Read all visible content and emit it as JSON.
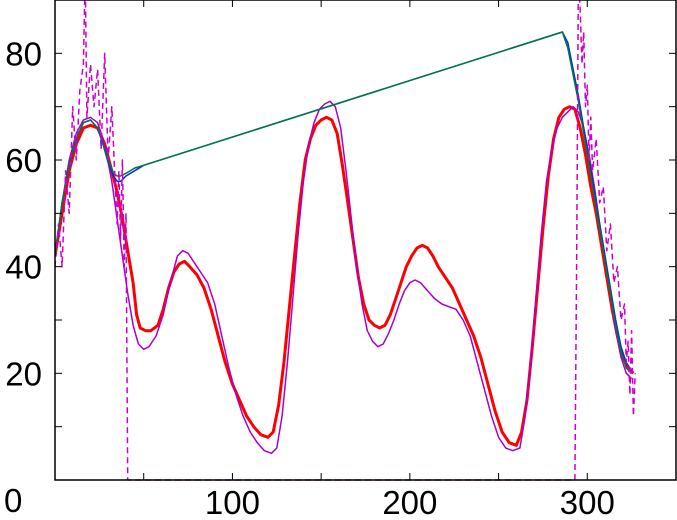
{
  "chart_data": {
    "type": "line",
    "title": "",
    "xlabel": "",
    "ylabel": "",
    "xlim": [
      0,
      350
    ],
    "ylim": [
      0,
      90
    ],
    "grid": false,
    "legend": "none",
    "x_ticks": [
      100,
      200,
      300
    ],
    "x_tick_labels": [
      "100",
      "200",
      "300"
    ],
    "y_ticks": [
      20,
      40,
      60,
      80
    ],
    "y_tick_labels": [
      "20",
      "40",
      "60",
      "80"
    ],
    "origin_label": "0",
    "series": [
      {
        "color": "#ff0000",
        "style": "solid",
        "width": "thick",
        "points": [
          [
            0,
            42
          ],
          [
            4,
            50
          ],
          [
            8,
            58
          ],
          [
            12,
            63
          ],
          [
            16,
            66
          ],
          [
            20,
            66.5
          ],
          [
            24,
            66
          ],
          [
            28,
            63
          ],
          [
            32,
            58
          ],
          [
            35,
            54
          ],
          [
            38,
            49
          ],
          [
            41,
            43
          ],
          [
            44,
            37
          ],
          [
            46,
            31
          ],
          [
            48,
            28.5
          ],
          [
            51,
            28
          ],
          [
            54,
            28
          ],
          [
            58,
            29
          ],
          [
            61,
            32
          ],
          [
            64,
            36
          ],
          [
            67,
            39
          ],
          [
            70,
            40.5
          ],
          [
            73,
            41
          ],
          [
            76,
            40
          ],
          [
            80,
            38.5
          ],
          [
            84,
            36
          ],
          [
            88,
            32
          ],
          [
            92,
            27
          ],
          [
            96,
            22
          ],
          [
            100,
            18
          ],
          [
            104,
            15
          ],
          [
            108,
            12
          ],
          [
            112,
            10
          ],
          [
            116,
            8.5
          ],
          [
            120,
            8
          ],
          [
            123,
            9
          ],
          [
            126,
            14
          ],
          [
            129,
            22
          ],
          [
            132,
            32
          ],
          [
            135,
            42
          ],
          [
            138,
            52
          ],
          [
            141,
            60
          ],
          [
            144,
            64
          ],
          [
            147,
            66.5
          ],
          [
            150,
            67.5
          ],
          [
            153,
            68
          ],
          [
            156,
            67.5
          ],
          [
            159,
            65
          ],
          [
            162,
            59
          ],
          [
            165,
            52
          ],
          [
            168,
            45
          ],
          [
            171,
            38
          ],
          [
            174,
            33
          ],
          [
            177,
            30
          ],
          [
            180,
            29
          ],
          [
            183,
            28.5
          ],
          [
            186,
            29
          ],
          [
            189,
            31
          ],
          [
            192,
            34
          ],
          [
            195,
            37
          ],
          [
            198,
            40
          ],
          [
            201,
            42
          ],
          [
            204,
            43.5
          ],
          [
            207,
            44
          ],
          [
            210,
            43.5
          ],
          [
            213,
            42
          ],
          [
            216,
            40
          ],
          [
            220,
            38
          ],
          [
            224,
            36
          ],
          [
            228,
            33
          ],
          [
            232,
            30
          ],
          [
            236,
            27
          ],
          [
            240,
            23
          ],
          [
            244,
            18
          ],
          [
            248,
            13
          ],
          [
            252,
            9
          ],
          [
            256,
            7
          ],
          [
            260,
            6.5
          ],
          [
            263,
            9
          ],
          [
            266,
            15
          ],
          [
            269,
            25
          ],
          [
            272,
            36
          ],
          [
            275,
            47
          ],
          [
            278,
            57
          ],
          [
            281,
            64
          ],
          [
            284,
            68
          ],
          [
            287,
            69.5
          ],
          [
            290,
            70
          ],
          [
            293,
            69.5
          ],
          [
            296,
            66
          ],
          [
            299,
            61
          ],
          [
            302,
            55
          ],
          [
            305,
            50
          ],
          [
            308,
            44
          ],
          [
            311,
            38
          ],
          [
            314,
            32
          ],
          [
            317,
            27
          ],
          [
            320,
            23
          ],
          [
            323,
            21
          ],
          [
            326,
            20
          ]
        ]
      },
      {
        "color": "#aa00cc",
        "style": "solid",
        "width": "thin",
        "points": [
          [
            0,
            42
          ],
          [
            4,
            52
          ],
          [
            8,
            60
          ],
          [
            12,
            65
          ],
          [
            16,
            67.5
          ],
          [
            20,
            68
          ],
          [
            24,
            67
          ],
          [
            28,
            63
          ],
          [
            32,
            56
          ],
          [
            35,
            49
          ],
          [
            38,
            42
          ],
          [
            41,
            35
          ],
          [
            44,
            29
          ],
          [
            47,
            25.5
          ],
          [
            50,
            24.5
          ],
          [
            53,
            25
          ],
          [
            57,
            27
          ],
          [
            61,
            31
          ],
          [
            65,
            37
          ],
          [
            69,
            42
          ],
          [
            72,
            43
          ],
          [
            75,
            42.5
          ],
          [
            78,
            41
          ],
          [
            82,
            39
          ],
          [
            86,
            37
          ],
          [
            90,
            33
          ],
          [
            94,
            27
          ],
          [
            98,
            21
          ],
          [
            102,
            16
          ],
          [
            106,
            12
          ],
          [
            110,
            9
          ],
          [
            114,
            7
          ],
          [
            118,
            5.5
          ],
          [
            122,
            5
          ],
          [
            125,
            6
          ],
          [
            128,
            12
          ],
          [
            131,
            22
          ],
          [
            134,
            34
          ],
          [
            137,
            46
          ],
          [
            140,
            56
          ],
          [
            143,
            63
          ],
          [
            146,
            67
          ],
          [
            149,
            69.5
          ],
          [
            152,
            70.5
          ],
          [
            155,
            71
          ],
          [
            158,
            70
          ],
          [
            161,
            66
          ],
          [
            164,
            58
          ],
          [
            167,
            49
          ],
          [
            170,
            40
          ],
          [
            173,
            33
          ],
          [
            176,
            28
          ],
          [
            179,
            26
          ],
          [
            182,
            25
          ],
          [
            185,
            25.5
          ],
          [
            188,
            27.5
          ],
          [
            191,
            30
          ],
          [
            194,
            33
          ],
          [
            197,
            35.5
          ],
          [
            200,
            37
          ],
          [
            203,
            37.5
          ],
          [
            206,
            37
          ],
          [
            210,
            35.5
          ],
          [
            214,
            34
          ],
          [
            218,
            33
          ],
          [
            222,
            32.5
          ],
          [
            226,
            32
          ],
          [
            230,
            30
          ],
          [
            234,
            27
          ],
          [
            238,
            22
          ],
          [
            242,
            17
          ],
          [
            246,
            12
          ],
          [
            250,
            8
          ],
          [
            254,
            6
          ],
          [
            258,
            5.5
          ],
          [
            262,
            6
          ],
          [
            265,
            12
          ],
          [
            268,
            22
          ],
          [
            271,
            34
          ],
          [
            274,
            46
          ],
          [
            277,
            56
          ],
          [
            280,
            62
          ],
          [
            283,
            66
          ],
          [
            286,
            68
          ],
          [
            289,
            69
          ],
          [
            292,
            70
          ],
          [
            295,
            69
          ],
          [
            298,
            66
          ],
          [
            301,
            61
          ],
          [
            304,
            55
          ],
          [
            307,
            48
          ],
          [
            310,
            42
          ],
          [
            313,
            35
          ],
          [
            316,
            28
          ],
          [
            319,
            23
          ],
          [
            322,
            20
          ],
          [
            325,
            19
          ]
        ]
      },
      {
        "color": "#0033cc",
        "style": "solid",
        "width": "thin",
        "points": [
          [
            0,
            42
          ],
          [
            4,
            52
          ],
          [
            8,
            59
          ],
          [
            12,
            64
          ],
          [
            16,
            67
          ],
          [
            20,
            67.5
          ],
          [
            24,
            66
          ],
          [
            27,
            63
          ],
          [
            30,
            59.5
          ],
          [
            33,
            57
          ],
          [
            35,
            56
          ],
          [
            37,
            56
          ],
          [
            40,
            57
          ],
          [
            45,
            58
          ],
          [
            50,
            59
          ],
          [
            286,
            84
          ],
          [
            289,
            82
          ],
          [
            292,
            77
          ],
          [
            295,
            72
          ],
          [
            298,
            66
          ],
          [
            301,
            60
          ],
          [
            304,
            54
          ],
          [
            307,
            48
          ],
          [
            310,
            42
          ],
          [
            313,
            36
          ],
          [
            316,
            30
          ],
          [
            319,
            25
          ],
          [
            322,
            22
          ],
          [
            325,
            20.5
          ]
        ]
      },
      {
        "color": "#007744",
        "style": "solid",
        "width": "thin",
        "points": [
          [
            0,
            42
          ],
          [
            4,
            52
          ],
          [
            8,
            59
          ],
          [
            12,
            64
          ],
          [
            16,
            67
          ],
          [
            20,
            67.5
          ],
          [
            24,
            66
          ],
          [
            27,
            63
          ],
          [
            30,
            60
          ],
          [
            33,
            57.5
          ],
          [
            35,
            57
          ],
          [
            37,
            57
          ],
          [
            40,
            57.5
          ],
          [
            45,
            58.5
          ],
          [
            50,
            59
          ],
          [
            286,
            84
          ],
          [
            289,
            81
          ],
          [
            292,
            76
          ],
          [
            295,
            71
          ],
          [
            298,
            65
          ],
          [
            301,
            59
          ],
          [
            304,
            53
          ],
          [
            307,
            47
          ],
          [
            310,
            41
          ],
          [
            313,
            35
          ],
          [
            316,
            29
          ],
          [
            319,
            24
          ],
          [
            322,
            21
          ],
          [
            325,
            20
          ]
        ]
      },
      {
        "color": "#cc00cc",
        "style": "dashed",
        "width": "thin",
        "points": [
          [
            0,
            40
          ],
          [
            2,
            48
          ],
          [
            4,
            40
          ],
          [
            6,
            58
          ],
          [
            8,
            50
          ],
          [
            10,
            70
          ],
          [
            12,
            60
          ],
          [
            14,
            73
          ],
          [
            16,
            78
          ],
          [
            17,
            95
          ],
          [
            18,
            68
          ],
          [
            20,
            78
          ],
          [
            22,
            70
          ],
          [
            24,
            77
          ],
          [
            26,
            62
          ],
          [
            28,
            80
          ],
          [
            30,
            60
          ],
          [
            32,
            70
          ],
          [
            34,
            55
          ],
          [
            35,
            48
          ],
          [
            36,
            58
          ],
          [
            37,
            45
          ],
          [
            38,
            60
          ],
          [
            39,
            40
          ],
          [
            40,
            50
          ],
          [
            41,
            0
          ],
          [
            43,
            0
          ],
          [
            60,
            0
          ],
          [
            100,
            0
          ],
          [
            150,
            0
          ],
          [
            200,
            0
          ],
          [
            250,
            0
          ],
          [
            290,
            0
          ],
          [
            293,
            0
          ],
          [
            294,
            40
          ],
          [
            295,
            95
          ],
          [
            296,
            88
          ],
          [
            297,
            78
          ],
          [
            298,
            84
          ],
          [
            299,
            70
          ],
          [
            300,
            74
          ],
          [
            301,
            60
          ],
          [
            302,
            68
          ],
          [
            303,
            58
          ],
          [
            305,
            64
          ],
          [
            307,
            52
          ],
          [
            309,
            55
          ],
          [
            311,
            43
          ],
          [
            313,
            48
          ],
          [
            315,
            37
          ],
          [
            317,
            40
          ],
          [
            319,
            30
          ],
          [
            321,
            33
          ],
          [
            322,
            22
          ],
          [
            323,
            26
          ],
          [
            324,
            16
          ],
          [
            325,
            28
          ],
          [
            326,
            12
          ],
          [
            327,
            20
          ]
        ]
      }
    ]
  }
}
